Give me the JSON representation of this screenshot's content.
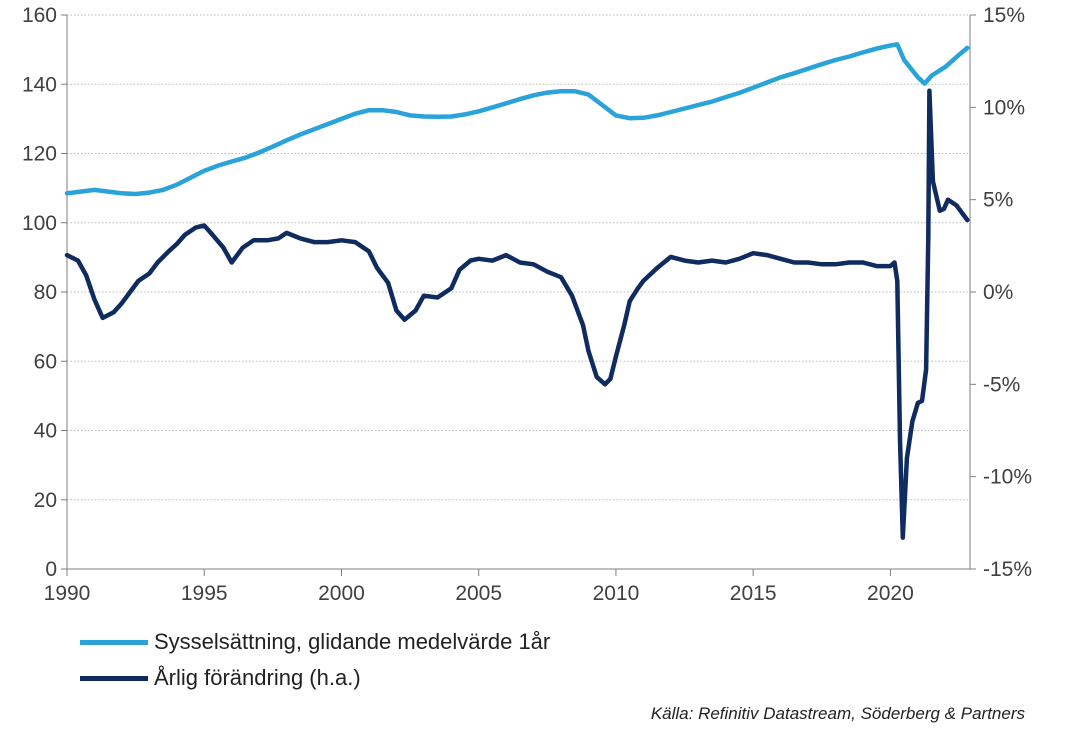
{
  "chart_data": {
    "type": "line",
    "title": "",
    "x_ticks": [
      "1990",
      "1995",
      "2000",
      "2005",
      "2010",
      "2015",
      "2020"
    ],
    "xlim": [
      1990,
      2022.9
    ],
    "y_left": {
      "ylim": [
        0,
        160
      ],
      "ticks": [
        "0",
        "20",
        "40",
        "60",
        "80",
        "100",
        "120",
        "140",
        "160"
      ]
    },
    "y_right": {
      "ylim": [
        -15,
        15
      ],
      "ticks": [
        "-15%",
        "-10%",
        "-5%",
        "0%",
        "5%",
        "10%",
        "15%"
      ]
    },
    "grid": true,
    "legend_position": "bottom-left",
    "series": [
      {
        "name": "Sysselsättning, glidande medelvärde 1år",
        "axis": "left",
        "color": "#2aa3da",
        "points": [
          [
            1990,
            108.5
          ],
          [
            1990.5,
            109
          ],
          [
            1991,
            109.5
          ],
          [
            1991.5,
            109
          ],
          [
            1992,
            108.5
          ],
          [
            1992.5,
            108.3
          ],
          [
            1993,
            108.7
          ],
          [
            1993.5,
            109.5
          ],
          [
            1994,
            111
          ],
          [
            1994.5,
            113
          ],
          [
            1995,
            115
          ],
          [
            1995.5,
            116.5
          ],
          [
            1996,
            117.7
          ],
          [
            1996.5,
            118.8
          ],
          [
            1997,
            120.3
          ],
          [
            1997.5,
            122
          ],
          [
            1998,
            123.8
          ],
          [
            1998.5,
            125.5
          ],
          [
            1999,
            127
          ],
          [
            1999.5,
            128.5
          ],
          [
            2000,
            130
          ],
          [
            2000.5,
            131.5
          ],
          [
            2001,
            132.5
          ],
          [
            2001.5,
            132.5
          ],
          [
            2002,
            132
          ],
          [
            2002.5,
            131
          ],
          [
            2003,
            130.7
          ],
          [
            2003.5,
            130.6
          ],
          [
            2004,
            130.7
          ],
          [
            2004.5,
            131.3
          ],
          [
            2005,
            132.2
          ],
          [
            2005.5,
            133.3
          ],
          [
            2006,
            134.5
          ],
          [
            2006.5,
            135.7
          ],
          [
            2007,
            136.8
          ],
          [
            2007.5,
            137.6
          ],
          [
            2008,
            138
          ],
          [
            2008.5,
            138
          ],
          [
            2009,
            137
          ],
          [
            2009.5,
            134
          ],
          [
            2010,
            131
          ],
          [
            2010.5,
            130.2
          ],
          [
            2011,
            130.3
          ],
          [
            2011.5,
            131
          ],
          [
            2012,
            132
          ],
          [
            2012.5,
            133
          ],
          [
            2013,
            134
          ],
          [
            2013.5,
            135
          ],
          [
            2014,
            136.3
          ],
          [
            2014.5,
            137.5
          ],
          [
            2015,
            139
          ],
          [
            2015.5,
            140.5
          ],
          [
            2016,
            142
          ],
          [
            2016.5,
            143.2
          ],
          [
            2017,
            144.5
          ],
          [
            2017.5,
            145.8
          ],
          [
            2018,
            147
          ],
          [
            2018.5,
            148
          ],
          [
            2019,
            149.2
          ],
          [
            2019.5,
            150.3
          ],
          [
            2020,
            151.2
          ],
          [
            2020.25,
            151.5
          ],
          [
            2020.5,
            147
          ],
          [
            2021,
            142
          ],
          [
            2021.25,
            140.2
          ],
          [
            2021.5,
            142.5
          ],
          [
            2022,
            145
          ],
          [
            2022.5,
            148.5
          ],
          [
            2022.8,
            150.5
          ]
        ]
      },
      {
        "name": "Årlig förändring (h.a.)",
        "axis": "right",
        "color": "#0f2b5f",
        "points": [
          [
            1990,
            2
          ],
          [
            1990.4,
            1.7
          ],
          [
            1990.7,
            0.9
          ],
          [
            1991,
            -0.4
          ],
          [
            1991.3,
            -1.4
          ],
          [
            1991.7,
            -1.1
          ],
          [
            1992,
            -0.6
          ],
          [
            1992.3,
            0
          ],
          [
            1992.6,
            0.6
          ],
          [
            1993,
            1
          ],
          [
            1993.3,
            1.6
          ],
          [
            1993.7,
            2.2
          ],
          [
            1994,
            2.6
          ],
          [
            1994.3,
            3.1
          ],
          [
            1994.7,
            3.5
          ],
          [
            1995,
            3.6
          ],
          [
            1995.3,
            3.1
          ],
          [
            1995.7,
            2.4
          ],
          [
            1996,
            1.6
          ],
          [
            1996.4,
            2.4
          ],
          [
            1996.8,
            2.8
          ],
          [
            1997.3,
            2.8
          ],
          [
            1997.7,
            2.9
          ],
          [
            1998,
            3.2
          ],
          [
            1998.5,
            2.9
          ],
          [
            1999,
            2.7
          ],
          [
            1999.5,
            2.7
          ],
          [
            2000,
            2.8
          ],
          [
            2000.5,
            2.7
          ],
          [
            2001,
            2.2
          ],
          [
            2001.3,
            1.3
          ],
          [
            2001.7,
            0.5
          ],
          [
            2002,
            -1
          ],
          [
            2002.3,
            -1.5
          ],
          [
            2002.7,
            -1
          ],
          [
            2003,
            -0.2
          ],
          [
            2003.5,
            -0.3
          ],
          [
            2004,
            0.2
          ],
          [
            2004.3,
            1.2
          ],
          [
            2004.7,
            1.7
          ],
          [
            2005,
            1.8
          ],
          [
            2005.5,
            1.7
          ],
          [
            2006,
            2
          ],
          [
            2006.5,
            1.6
          ],
          [
            2007,
            1.5
          ],
          [
            2007.5,
            1.1
          ],
          [
            2008,
            0.8
          ],
          [
            2008.4,
            -0.2
          ],
          [
            2008.8,
            -1.8
          ],
          [
            2009,
            -3.2
          ],
          [
            2009.3,
            -4.6
          ],
          [
            2009.6,
            -5
          ],
          [
            2009.8,
            -4.7
          ],
          [
            2010,
            -3.5
          ],
          [
            2010.3,
            -1.8
          ],
          [
            2010.5,
            -0.5
          ],
          [
            2010.8,
            0.2
          ],
          [
            2011,
            0.6
          ],
          [
            2011.5,
            1.3
          ],
          [
            2012,
            1.9
          ],
          [
            2012.5,
            1.7
          ],
          [
            2013,
            1.6
          ],
          [
            2013.5,
            1.7
          ],
          [
            2014,
            1.6
          ],
          [
            2014.5,
            1.8
          ],
          [
            2015,
            2.1
          ],
          [
            2015.5,
            2
          ],
          [
            2016,
            1.8
          ],
          [
            2016.5,
            1.6
          ],
          [
            2017,
            1.6
          ],
          [
            2017.5,
            1.5
          ],
          [
            2018,
            1.5
          ],
          [
            2018.5,
            1.6
          ],
          [
            2019,
            1.6
          ],
          [
            2019.5,
            1.4
          ],
          [
            2020,
            1.4
          ],
          [
            2020.15,
            1.6
          ],
          [
            2020.25,
            0.6
          ],
          [
            2020.35,
            -8
          ],
          [
            2020.45,
            -13.3
          ],
          [
            2020.6,
            -9
          ],
          [
            2020.8,
            -7
          ],
          [
            2021,
            -6
          ],
          [
            2021.15,
            -5.9
          ],
          [
            2021.3,
            -4.2
          ],
          [
            2021.38,
            3
          ],
          [
            2021.42,
            10.9
          ],
          [
            2021.55,
            6
          ],
          [
            2021.8,
            4.4
          ],
          [
            2021.95,
            4.5
          ],
          [
            2022.1,
            5
          ],
          [
            2022.4,
            4.7
          ],
          [
            2022.6,
            4.3
          ],
          [
            2022.8,
            3.9
          ]
        ]
      }
    ]
  },
  "legend": [
    {
      "label": "Sysselsättning, glidande medelvärde 1år",
      "color": "#2aa3da"
    },
    {
      "label": "Årlig förändring (h.a.)",
      "color": "#0f2b5f"
    }
  ],
  "source": "Källa: Refinitiv Datastream, Söderberg & Partners"
}
